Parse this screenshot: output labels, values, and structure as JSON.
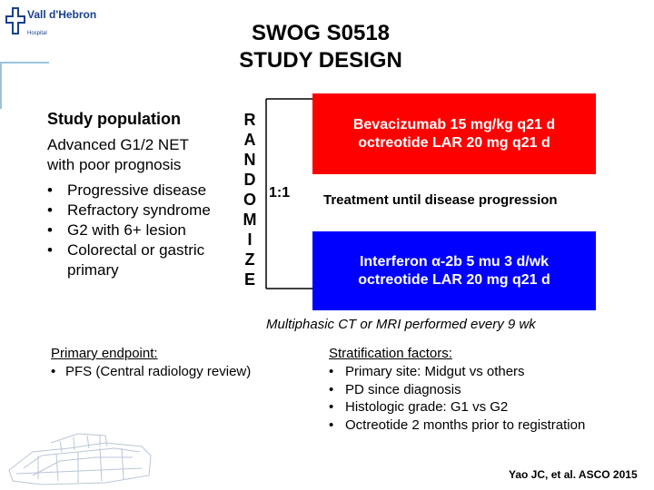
{
  "logo": {
    "name": "Vall d'Hebron",
    "sub": "Hospital"
  },
  "title": {
    "line1": "SWOG S0518",
    "line2": "STUDY DESIGN"
  },
  "population": {
    "heading": "Study population",
    "desc_line1": "Advanced G1/2 NET",
    "desc_line2": "with poor prognosis",
    "items": [
      {
        "line1": "Progressive disease",
        "line2": ""
      },
      {
        "line1": "Refractory syndrome",
        "line2": ""
      },
      {
        "line1": "G2 with 6+ lesion",
        "line2": ""
      },
      {
        "line1": "Colorectal or gastric",
        "line2": "primary"
      }
    ]
  },
  "randomize": {
    "letters": [
      "R",
      "A",
      "N",
      "D",
      "O",
      "M",
      "I",
      "Z",
      "E"
    ],
    "ratio": "1:1"
  },
  "arms": {
    "a": {
      "line1": "Bevacizumab 15 mg/kg q21 d",
      "line2": "octreotide LAR 20 mg q21 d",
      "color": "#ff0000"
    },
    "b": {
      "line1": "Interferon α-2b 5 mu 3 d/wk",
      "line2": "octreotide LAR 20 mg q21 d",
      "color": "#0000ff"
    },
    "treatment_note": "Treatment until disease progression"
  },
  "imaging_note": "Multiphasic CT or MRI performed every 9 wk",
  "endpoint": {
    "heading": "Primary endpoint:",
    "items": [
      "PFS (Central radiology review)"
    ]
  },
  "stratification": {
    "heading": "Stratification factors:",
    "items": [
      "Primary site: Midgut vs others",
      "PD since diagnosis",
      "Histologic grade: G1 vs G2",
      "Octreotide 2 months prior to registration"
    ]
  },
  "citation": "Yao JC, et al. ASCO 2015"
}
